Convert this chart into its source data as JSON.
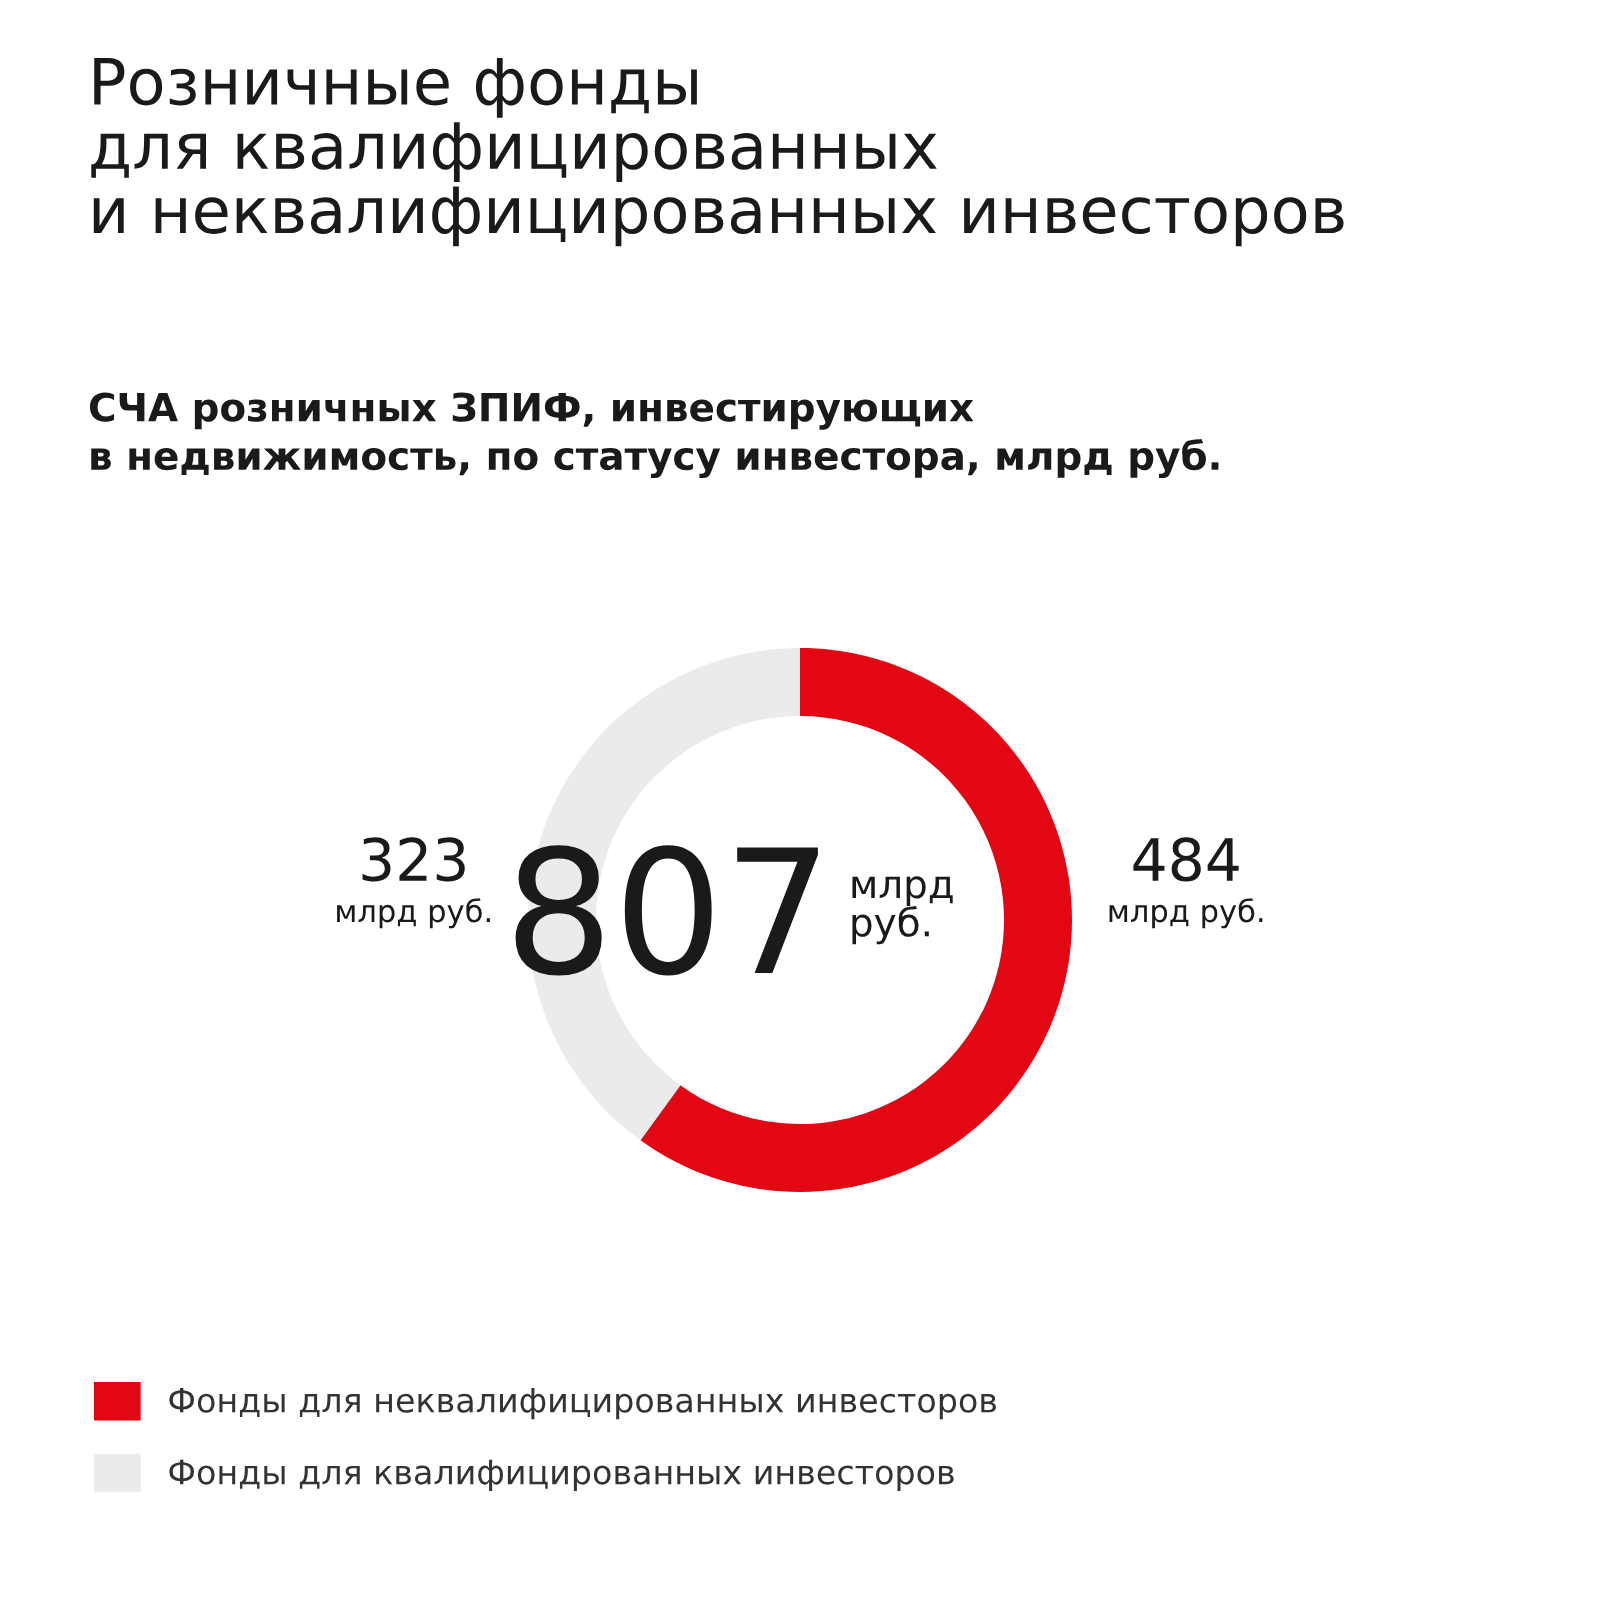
{
  "chart_data": {
    "type": "donut",
    "title": "Розничные фонды\nдля квалифицированных\nи неквалифицированных инвесторов",
    "subtitle": "СЧА розничных ЗПИФ, инвестирующих\nв недвижимость, по статусу инвестора, млрд руб.",
    "categories": [
      "Фонды для неквалифицированных инвесторов",
      "Фонды для квалифицированных инвесторов"
    ],
    "values": [
      484,
      323
    ],
    "colors": [
      "#e30613",
      "#ebebeb"
    ],
    "value_labels": [
      "484\nмлрд руб.",
      "323\nмлрд руб."
    ],
    "annotations": [
      "807",
      "млрд\nруб."
    ],
    "legend": "bottom left"
  }
}
